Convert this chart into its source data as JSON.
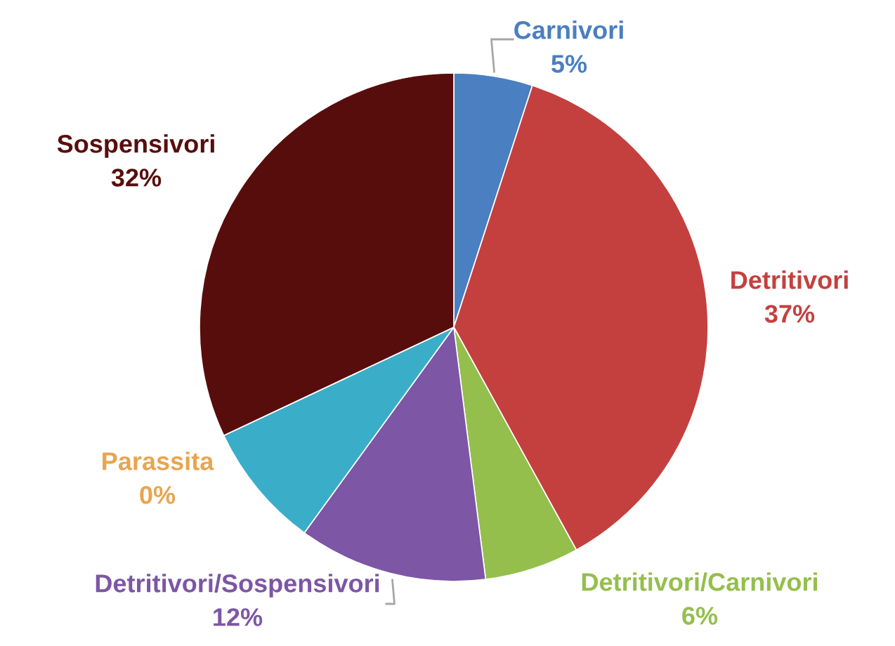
{
  "chart_data": {
    "type": "pie",
    "categories": [
      "Carnivori",
      "Detritivori",
      "Detritivori/Carnivori",
      "Detritivori/Sospensivori",
      null,
      "Parassita",
      "Sospensivori"
    ],
    "values": [
      5,
      37,
      6,
      12,
      8,
      0,
      32
    ],
    "value_labels": [
      "5%",
      "37%",
      "6%",
      "12%",
      null,
      "0%",
      "32%"
    ],
    "colors": [
      "#4a7fc1",
      "#c4403f",
      "#94bf4c",
      "#7d56a5",
      "#3aaec8",
      "#e8a54f",
      "#580d0d"
    ]
  }
}
